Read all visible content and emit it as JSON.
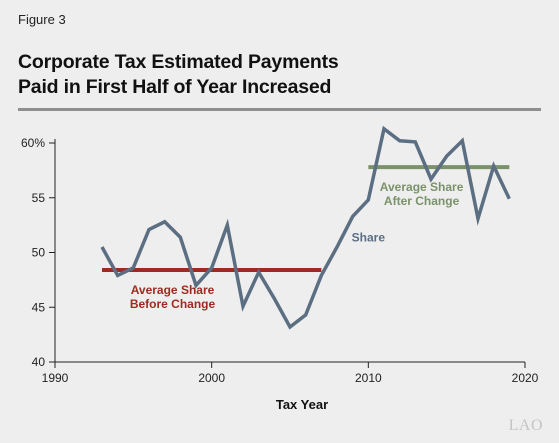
{
  "figure_label": "Figure 3",
  "title_lines": [
    "Corporate Tax Estimated Payments",
    "Paid in First Half of Year Increased"
  ],
  "logo_text": "LAO",
  "colors": {
    "share_line": "#5b6e82",
    "before_avg": "#9e2a20",
    "after_avg": "#7a9269",
    "axis": "#222222",
    "background": "#eeeeee"
  },
  "chart_data": {
    "type": "line",
    "title": "Corporate Tax Estimated Payments Paid in First Half of Year Increased",
    "xlabel": "Tax Year",
    "ylabel": "",
    "xlim": [
      1990,
      2020
    ],
    "ylim": [
      40,
      60
    ],
    "x_ticks": [
      1990,
      2000,
      2010,
      2020
    ],
    "y_ticks": [
      40,
      45,
      50,
      55,
      60
    ],
    "y_tick_labels": [
      "40",
      "45",
      "50",
      "55",
      "60%"
    ],
    "grid": false,
    "series": [
      {
        "name": "Share",
        "x": [
          1993,
          1994,
          1995,
          1996,
          1997,
          1998,
          1999,
          2000,
          2001,
          2002,
          2003,
          2004,
          2005,
          2006,
          2007,
          2008,
          2009,
          2010,
          2011,
          2012,
          2013,
          2014,
          2015,
          2016,
          2017,
          2018,
          2019
        ],
        "y": [
          50.5,
          47.9,
          48.6,
          52.1,
          52.8,
          51.4,
          47.0,
          48.6,
          52.5,
          45.1,
          48.2,
          45.8,
          43.2,
          44.3,
          47.9,
          50.5,
          53.3,
          54.8,
          61.3,
          60.2,
          60.1,
          56.7,
          58.8,
          60.2,
          53.1,
          57.9,
          54.9
        ]
      }
    ],
    "reference_lines": [
      {
        "label_lines": [
          "Average Share",
          "Before Change"
        ],
        "x_start": 1993,
        "x_end": 2007,
        "y": 48.4
      },
      {
        "label_lines": [
          "Average Share",
          "After Change"
        ],
        "x_start": 2010,
        "x_end": 2019,
        "y": 57.8
      }
    ]
  }
}
